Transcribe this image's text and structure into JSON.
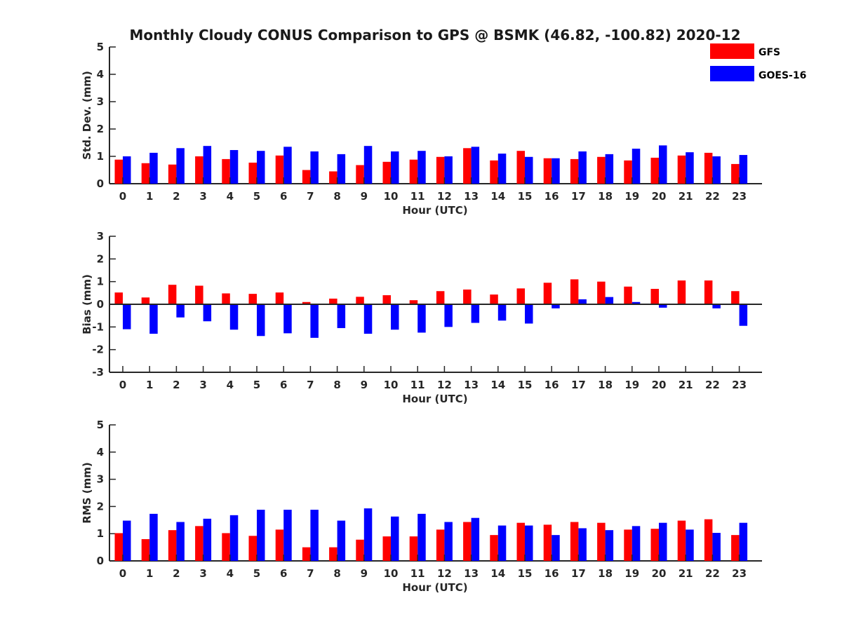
{
  "chart_data": {
    "type": "bar",
    "title": "Monthly Cloudy CONUS Comparison to GPS @ BSMK (46.82, -100.82) 2020-12",
    "colors": {
      "GFS": "#ff0000",
      "GOES-16": "#0000ff",
      "axis": "#262626"
    },
    "legend": {
      "position": "top-right",
      "entries": [
        "GFS",
        "GOES-16"
      ]
    },
    "subplots": [
      {
        "id": "std",
        "ylabel": "Std. Dev. (mm)",
        "xlabel": "Hour (UTC)",
        "ylim": [
          0,
          5
        ],
        "yticks": [
          0,
          1,
          2,
          3,
          4,
          5
        ],
        "categories": [
          "0",
          "1",
          "2",
          "3",
          "4",
          "5",
          "6",
          "7",
          "8",
          "9",
          "10",
          "11",
          "12",
          "13",
          "14",
          "15",
          "16",
          "17",
          "18",
          "19",
          "20",
          "21",
          "22",
          "23"
        ],
        "series": [
          {
            "name": "GFS",
            "values": [
              0.88,
              0.75,
              0.7,
              1.0,
              0.9,
              0.77,
              1.03,
              0.5,
              0.45,
              0.68,
              0.8,
              0.88,
              0.98,
              1.3,
              0.85,
              1.2,
              0.93,
              0.9,
              0.98,
              0.85,
              0.95,
              1.03,
              1.13,
              0.72
            ]
          },
          {
            "name": "GOES-16",
            "values": [
              1.0,
              1.13,
              1.3,
              1.38,
              1.23,
              1.2,
              1.35,
              1.18,
              1.08,
              1.38,
              1.18,
              1.2,
              1.0,
              1.35,
              1.1,
              0.98,
              0.93,
              1.18,
              1.08,
              1.28,
              1.4,
              1.15,
              1.0,
              1.05
            ]
          }
        ]
      },
      {
        "id": "bias",
        "ylabel": "Bias (mm)",
        "xlabel": "Hour (UTC)",
        "ylim": [
          -3,
          3
        ],
        "yticks": [
          -3,
          -2,
          -1,
          0,
          1,
          2,
          3
        ],
        "categories": [
          "0",
          "1",
          "2",
          "3",
          "4",
          "5",
          "6",
          "7",
          "8",
          "9",
          "10",
          "11",
          "12",
          "13",
          "14",
          "15",
          "16",
          "17",
          "18",
          "19",
          "20",
          "21",
          "22",
          "23"
        ],
        "series": [
          {
            "name": "GFS",
            "values": [
              0.52,
              0.3,
              0.86,
              0.82,
              0.48,
              0.46,
              0.52,
              0.1,
              0.25,
              0.33,
              0.4,
              0.18,
              0.58,
              0.65,
              0.43,
              0.7,
              0.95,
              1.1,
              1.0,
              0.78,
              0.68,
              1.05,
              1.05,
              0.58
            ]
          },
          {
            "name": "GOES-16",
            "values": [
              -1.1,
              -1.3,
              -0.58,
              -0.75,
              -1.12,
              -1.4,
              -1.28,
              -1.48,
              -1.05,
              -1.3,
              -1.12,
              -1.25,
              -1.0,
              -0.82,
              -0.72,
              -0.85,
              -0.18,
              0.22,
              0.32,
              0.1,
              -0.15,
              0.02,
              -0.18,
              -0.95
            ]
          }
        ]
      },
      {
        "id": "rms",
        "ylabel": "RMS (mm)",
        "xlabel": "Hour (UTC)",
        "ylim": [
          0,
          5
        ],
        "yticks": [
          0,
          1,
          2,
          3,
          4,
          5
        ],
        "categories": [
          "0",
          "1",
          "2",
          "3",
          "4",
          "5",
          "6",
          "7",
          "8",
          "9",
          "10",
          "11",
          "12",
          "13",
          "14",
          "15",
          "16",
          "17",
          "18",
          "19",
          "20",
          "21",
          "22",
          "23"
        ],
        "series": [
          {
            "name": "GFS",
            "values": [
              1.02,
              0.8,
              1.13,
              1.28,
              1.02,
              0.92,
              1.15,
              0.5,
              0.5,
              0.78,
              0.9,
              0.9,
              1.15,
              1.43,
              0.95,
              1.4,
              1.33,
              1.43,
              1.4,
              1.15,
              1.18,
              1.48,
              1.53,
              0.95
            ]
          },
          {
            "name": "GOES-16",
            "values": [
              1.48,
              1.73,
              1.43,
              1.55,
              1.68,
              1.88,
              1.88,
              1.88,
              1.48,
              1.93,
              1.63,
              1.73,
              1.43,
              1.58,
              1.3,
              1.3,
              0.95,
              1.2,
              1.13,
              1.28,
              1.4,
              1.15,
              1.03,
              1.4
            ]
          }
        ]
      }
    ]
  }
}
